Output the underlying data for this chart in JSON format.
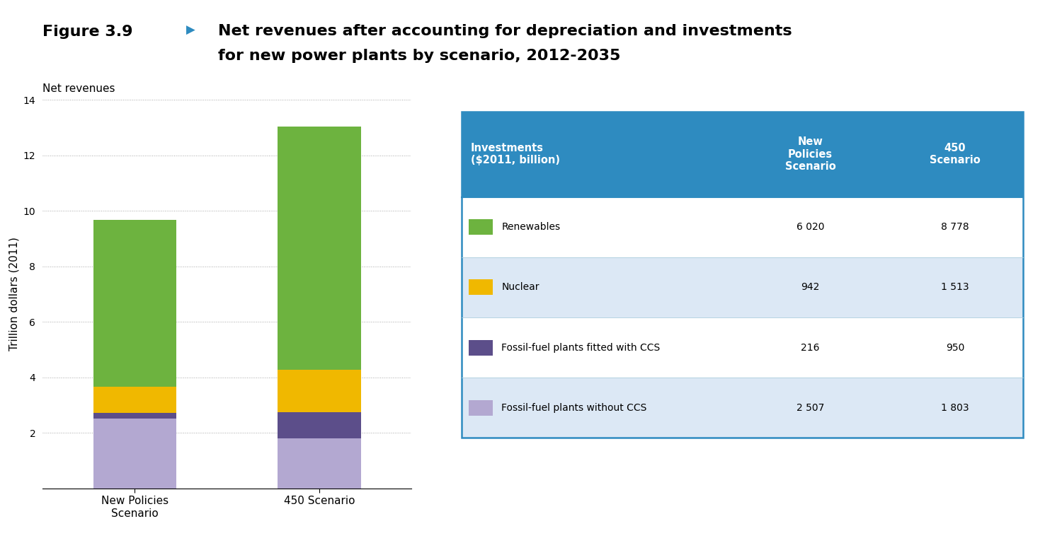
{
  "title_line1": "Net revenues after accounting for depreciation and investments",
  "title_line2": "for new power plants by scenario, 2012-2035",
  "figure_label": "Figure 3.9",
  "arrow": "▶",
  "chart_title": "Net revenues",
  "ylabel": "Trillion dollars (2011)",
  "categories": [
    "New Policies\nScenario",
    "450 Scenario"
  ],
  "segments": {
    "Fossil-fuel plants without CCS": {
      "color": "#b3a8d1",
      "values": [
        2.507,
        1.803
      ]
    },
    "Fossil-fuel plants fitted with CCS": {
      "color": "#5c4e8a",
      "values": [
        0.216,
        0.95
      ]
    },
    "Nuclear": {
      "color": "#f0b800",
      "values": [
        0.942,
        1.513
      ]
    },
    "Renewables": {
      "color": "#6db33f",
      "values": [
        6.02,
        8.778
      ]
    }
  },
  "ylim": [
    0,
    14
  ],
  "yticks": [
    2,
    4,
    6,
    8,
    10,
    12,
    14
  ],
  "table_header_bg": "#2e8bc0",
  "table_header_text": "#ffffff",
  "table_row_bg_alt": "#dce8f5",
  "table_row_bg_normal": "#ffffff",
  "table_border": "#2e8bc0",
  "table_headers": [
    "Investments\n($2011, billion)",
    "New\nPolicies\nScenario",
    "450\nScenario"
  ],
  "table_rows": [
    {
      "label": "Renewables",
      "color": "#6db33f",
      "new_policies": "6 020",
      "s450": "8 778"
    },
    {
      "label": "Nuclear",
      "color": "#f0b800",
      "new_policies": "942",
      "s450": "1 513"
    },
    {
      "label": "Fossil-fuel plants fitted with CCS",
      "color": "#5c4e8a",
      "new_policies": "216",
      "s450": "950"
    },
    {
      "label": "Fossil-fuel plants without CCS",
      "color": "#b3a8d1",
      "new_policies": "2 507",
      "s450": "1 803"
    }
  ],
  "background_color": "#ffffff",
  "bar_width": 0.45
}
